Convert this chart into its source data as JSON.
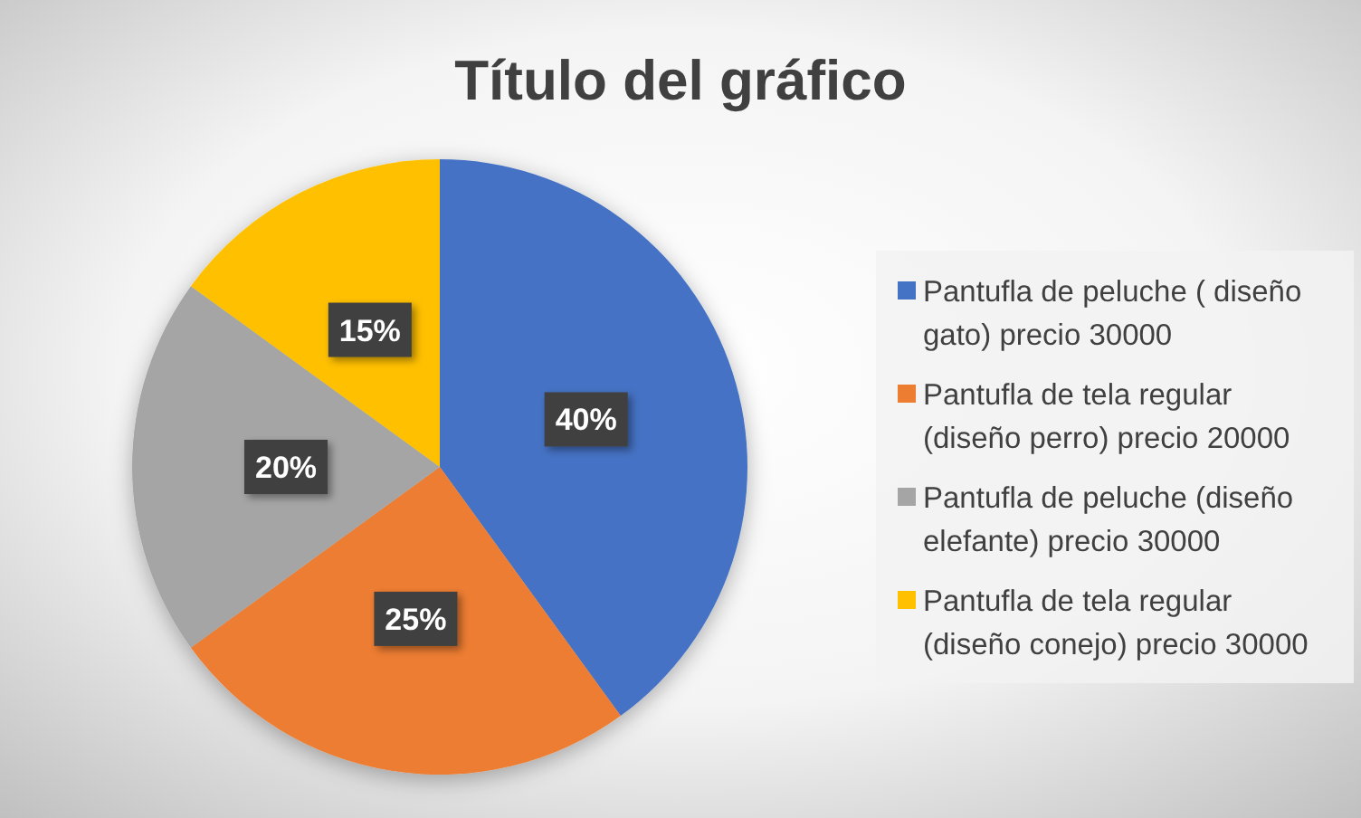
{
  "chart_data": {
    "type": "pie",
    "title": "Título del gráfico",
    "categories": [
      "Pantufla de peluche ( diseño gato) precio 30000",
      "Pantufla de tela regular (diseño perro) precio 20000",
      "Pantufla de peluche (diseño elefante) precio 30000",
      "Pantufla de tela regular (diseño conejo) precio 30000"
    ],
    "values": [
      40,
      25,
      20,
      15
    ],
    "colors": [
      "#4472c4",
      "#ed7d31",
      "#a5a5a5",
      "#ffc000"
    ],
    "value_labels": [
      "40%",
      "25%",
      "20%",
      "15%"
    ],
    "legend": "right"
  }
}
